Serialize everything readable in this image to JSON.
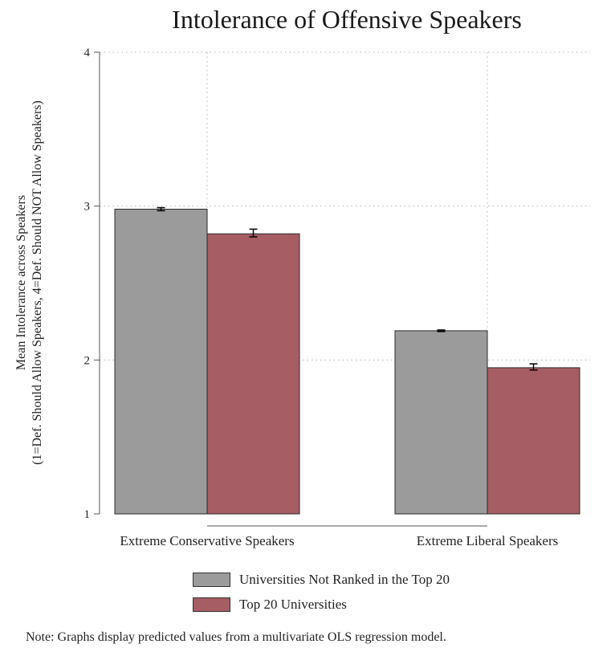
{
  "chart_data": {
    "type": "bar",
    "title": "Intolerance of Offensive Speakers",
    "ylabel_line1": "Mean Intolerance across Speakers",
    "ylabel_line2": "(1=Def. Should Allow Speakers, 4=Def. Should NOT Allow Speakers)",
    "xlabel": "",
    "ylim": [
      1,
      4
    ],
    "yticks": [
      1,
      2,
      3,
      4
    ],
    "grid": "dotted",
    "categories": [
      "Extreme Conservative Speakers",
      "Extreme Liberal Speakers"
    ],
    "series": [
      {
        "name": "Universities Not Ranked in the Top 20",
        "color": "#9b9b9b",
        "values": [
          2.98,
          2.19
        ],
        "ci_low": [
          2.97,
          2.185
        ],
        "ci_high": [
          2.99,
          2.195
        ]
      },
      {
        "name": "Top 20 Universities",
        "color": "#a65d63",
        "values": [
          2.82,
          1.95
        ],
        "ci_low": [
          2.8,
          1.935
        ],
        "ci_high": [
          2.85,
          1.975
        ]
      }
    ],
    "legend_position": "bottom",
    "note": "Note: Graphs display predicted values from a multivariate OLS regression model."
  }
}
